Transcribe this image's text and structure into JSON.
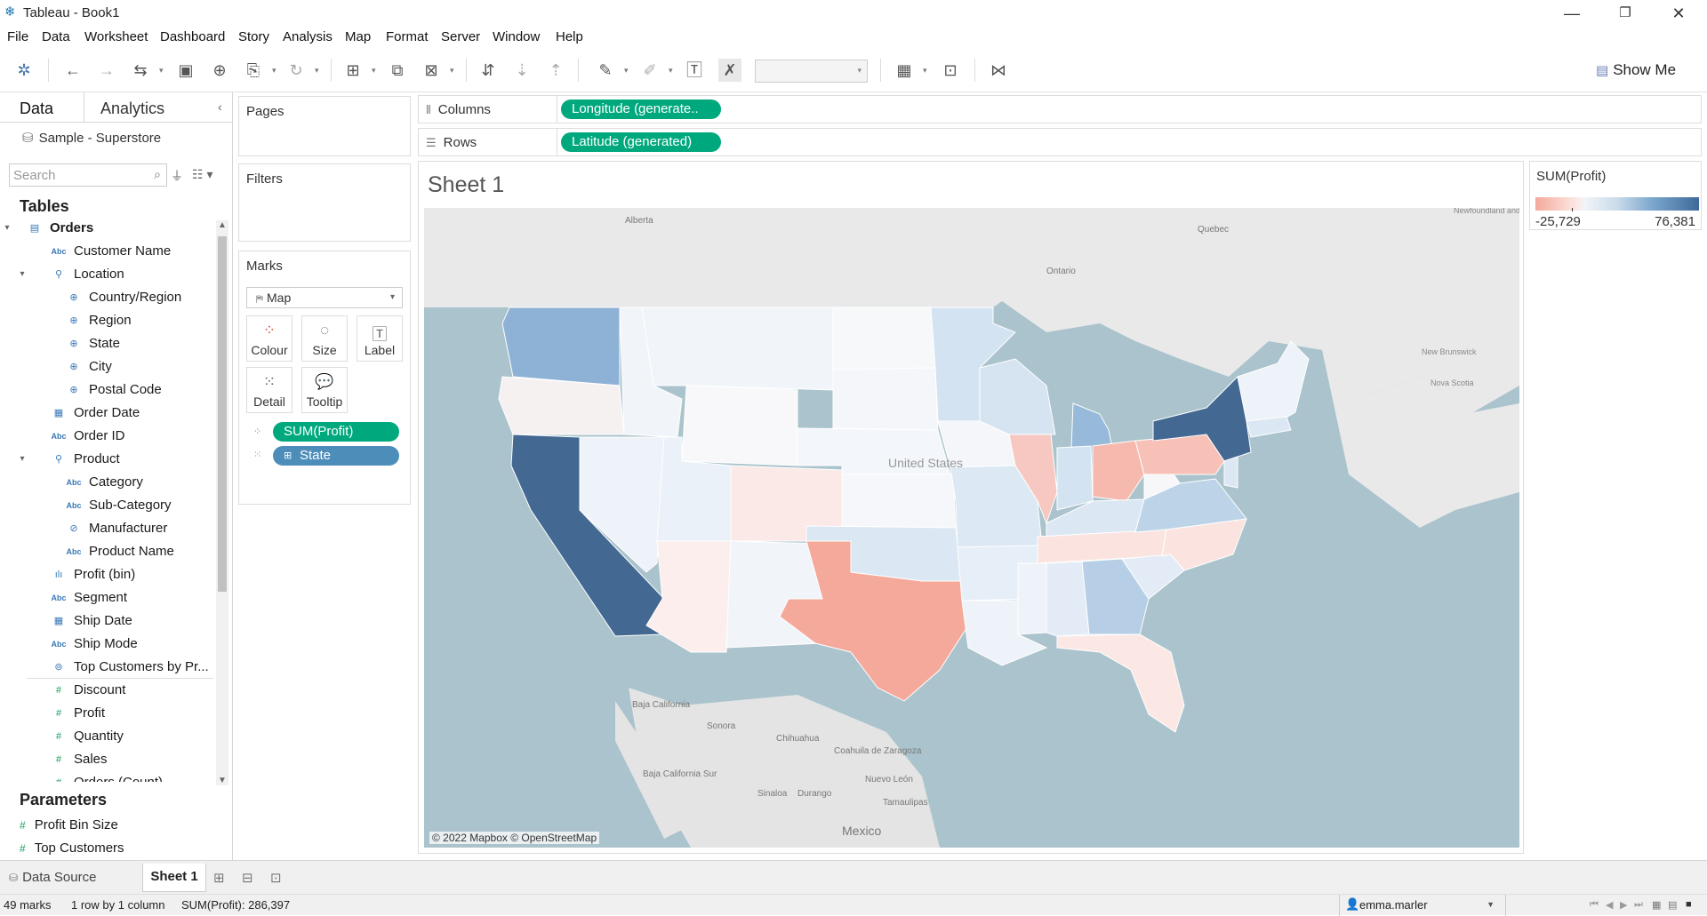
{
  "window": {
    "title": "Tableau - Book1",
    "controls": {
      "minimize": "—",
      "restore": "❐",
      "close": "✕"
    }
  },
  "menu": [
    "File",
    "Data",
    "Worksheet",
    "Dashboard",
    "Story",
    "Analysis",
    "Map",
    "Format",
    "Server",
    "Window",
    "Help"
  ],
  "toolbar": {
    "show_me": "Show Me",
    "fit_value": ""
  },
  "left_pane": {
    "tabs": {
      "data": "Data",
      "analytics": "Analytics"
    },
    "datasource": "Sample - Superstore",
    "search_placeholder": "Search",
    "tables_heading": "Tables",
    "fields": [
      {
        "label": "Orders",
        "icon": "table-icon",
        "indent": 0,
        "twisty": "▾",
        "bold": true
      },
      {
        "label": "Customer Name",
        "icon": "abc",
        "indent": 1
      },
      {
        "label": "Location",
        "icon": "hierarchy-icon",
        "indent": 1,
        "twisty": "▾"
      },
      {
        "label": "Country/Region",
        "icon": "globe-icon",
        "indent": 2
      },
      {
        "label": "Region",
        "icon": "globe-icon",
        "indent": 2
      },
      {
        "label": "State",
        "icon": "globe-icon",
        "indent": 2
      },
      {
        "label": "City",
        "icon": "globe-icon",
        "indent": 2
      },
      {
        "label": "Postal Code",
        "icon": "globe-icon",
        "indent": 2
      },
      {
        "label": "Order Date",
        "icon": "calendar-icon",
        "indent": 1
      },
      {
        "label": "Order ID",
        "icon": "abc",
        "indent": 1
      },
      {
        "label": "Product",
        "icon": "hierarchy-icon",
        "indent": 1,
        "twisty": "▾"
      },
      {
        "label": "Category",
        "icon": "abc",
        "indent": 2
      },
      {
        "label": "Sub-Category",
        "icon": "abc",
        "indent": 2
      },
      {
        "label": "Manufacturer",
        "icon": "paperclip-icon",
        "indent": 2
      },
      {
        "label": "Product Name",
        "icon": "abc",
        "indent": 2
      },
      {
        "label": "Profit (bin)",
        "icon": "bin-icon",
        "indent": 1
      },
      {
        "label": "Segment",
        "icon": "abc",
        "indent": 1
      },
      {
        "label": "Ship Date",
        "icon": "calendar-icon",
        "indent": 1
      },
      {
        "label": "Ship Mode",
        "icon": "abc",
        "indent": 1
      },
      {
        "label": "Top Customers by Pr...",
        "icon": "set-icon",
        "indent": 1
      },
      {
        "label": "Discount",
        "icon": "hash-icon",
        "indent": 1,
        "measure": true
      },
      {
        "label": "Profit",
        "icon": "hash-icon",
        "indent": 1,
        "measure": true
      },
      {
        "label": "Quantity",
        "icon": "hash-icon",
        "indent": 1,
        "measure": true
      },
      {
        "label": "Sales",
        "icon": "hash-icon",
        "indent": 1,
        "measure": true
      },
      {
        "label": "Orders (Count)",
        "icon": "hash-icon",
        "indent": 1,
        "measure": true
      }
    ],
    "parameters_heading": "Parameters",
    "parameters": [
      "Profit Bin Size",
      "Top Customers"
    ]
  },
  "cards": {
    "pages": "Pages",
    "filters": "Filters",
    "marks": "Marks",
    "mark_type": "Map",
    "mark_buttons": [
      "Colour",
      "Size",
      "Label",
      "Detail",
      "Tooltip"
    ],
    "mark_pills": [
      {
        "label": "SUM(Profit)",
        "kind": "colour"
      },
      {
        "label": "State",
        "kind": "detail"
      }
    ]
  },
  "shelves": {
    "columns_label": "Columns",
    "columns_pill": "Longitude (generate..",
    "rows_label": "Rows",
    "rows_pill": "Latitude (generated)"
  },
  "view": {
    "sheet_title": "Sheet 1",
    "attribution": "© 2022 Mapbox © OpenStreetMap",
    "map_labels": [
      "Alberta",
      "Quebec",
      "Ontario",
      "Newfoundland and Labrador",
      "New Brunswick",
      "Nova Scotia",
      "United States",
      "Baja California",
      "Sonora",
      "Chihuahua",
      "Coahuila de Zaragoza",
      "Nuevo León",
      "Baja California Sur",
      "Sinaloa",
      "Durango",
      "Tamaulipas",
      "Mexico"
    ]
  },
  "legend": {
    "title": "SUM(Profit)",
    "min": "-25,729",
    "max": "76,381",
    "colors": {
      "negative": "#f4a99b",
      "neutral": "#f2f4f8",
      "positive": "#3e6a9a"
    }
  },
  "tabs_bottom": {
    "data_source": "Data Source",
    "sheet": "Sheet 1"
  },
  "status": {
    "marks": "49 marks",
    "dims": "1 row by 1 column",
    "sum": "SUM(Profit): 286,397",
    "user": "emma.marler"
  }
}
